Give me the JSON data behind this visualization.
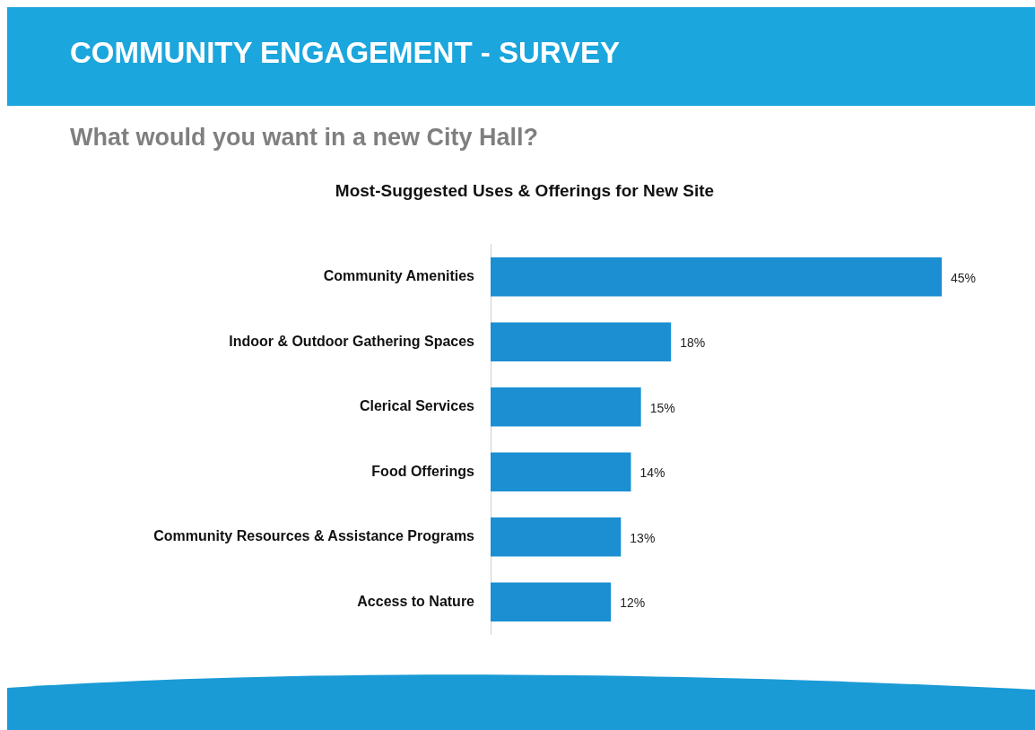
{
  "chart_data": {
    "type": "bar",
    "orientation": "horizontal",
    "title": "COMMUNITY ENGAGEMENT - SURVEY",
    "subtitle": "What would you want in a new City Hall?",
    "annotations": [
      "Most-Suggested Uses & Offerings for New Site"
    ],
    "categories": [
      "Community Amenities",
      "Indoor & Outdoor Gathering Spaces",
      "Clerical Services",
      "Food Offerings",
      "Community Resources & Assistance Programs",
      "Access to Nature"
    ],
    "values": [
      45,
      18,
      15,
      14,
      13,
      12
    ],
    "value_labels": [
      "45%",
      "18%",
      "15%",
      "14%",
      "13%",
      "12%"
    ],
    "color": "#1b8fd2",
    "grid": false,
    "legend": false
  }
}
